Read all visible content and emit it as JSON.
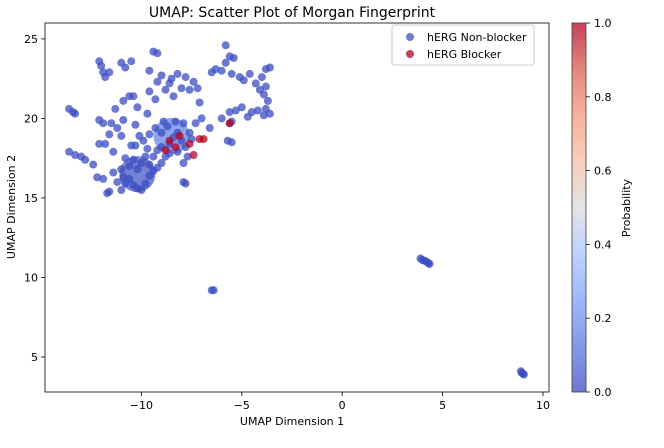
{
  "chart_data": {
    "type": "scatter",
    "title": "UMAP: Scatter Plot of Morgan Fingerprint",
    "xlabel": "UMAP Dimension 1",
    "ylabel": "UMAP Dimension 2",
    "xlim": [
      -14.8,
      10.3
    ],
    "ylim": [
      2.8,
      26.0
    ],
    "xticks": [
      -10,
      -5,
      0,
      5,
      10
    ],
    "xtick_labels": [
      "−10",
      "−5",
      "0",
      "5",
      "10"
    ],
    "yticks": [
      5,
      10,
      15,
      20,
      25
    ],
    "ytick_labels": [
      "5",
      "10",
      "15",
      "20",
      "25"
    ],
    "grid": false,
    "legend_position": "top-right",
    "colorbar": {
      "label": "Probability",
      "range": [
        0.0,
        1.0
      ],
      "ticks": [
        "0.0",
        "0.2",
        "0.4",
        "0.6",
        "0.8",
        "1.0"
      ],
      "colormap": "coolwarm"
    },
    "series": [
      {
        "name": "hERG Non-blocker",
        "color": "#3b4cc0",
        "points": [
          [
            -13.6,
            20.6
          ],
          [
            -13.4,
            20.4
          ],
          [
            -13.3,
            20.3
          ],
          [
            -12.1,
            23.6
          ],
          [
            -12.0,
            23.3
          ],
          [
            -11.9,
            22.9
          ],
          [
            -11.8,
            22.6
          ],
          [
            -11.6,
            22.9
          ],
          [
            -11.0,
            23.5
          ],
          [
            -10.8,
            23.2
          ],
          [
            -10.5,
            23.6
          ],
          [
            -11.3,
            20.6
          ],
          [
            -10.9,
            21.1
          ],
          [
            -10.6,
            21.4
          ],
          [
            -10.4,
            21.4
          ],
          [
            -11.5,
            19.7
          ],
          [
            -11.2,
            19.4
          ],
          [
            -10.9,
            19.9
          ],
          [
            -11.0,
            18.9
          ],
          [
            -11.4,
            17.9
          ],
          [
            -11.8,
            18.4
          ],
          [
            -12.1,
            18.4
          ],
          [
            -12.1,
            19.9
          ],
          [
            -11.9,
            19.7
          ],
          [
            -11.6,
            19.0
          ],
          [
            -10.5,
            18.3
          ],
          [
            -10.1,
            18.9
          ],
          [
            -10.3,
            19.6
          ],
          [
            -10.2,
            20.7
          ],
          [
            -9.7,
            20.3
          ],
          [
            -9.3,
            21.2
          ],
          [
            -9.6,
            21.7
          ],
          [
            -9.2,
            22.3
          ],
          [
            -9.0,
            22.7
          ],
          [
            -9.6,
            23.0
          ],
          [
            -9.4,
            24.2
          ],
          [
            -9.2,
            24.1
          ],
          [
            -8.8,
            21.8
          ],
          [
            -8.6,
            22.2
          ],
          [
            -8.4,
            21.4
          ],
          [
            -8.0,
            21.9
          ],
          [
            -7.6,
            21.8
          ],
          [
            -7.4,
            22.3
          ],
          [
            -7.2,
            21.9
          ],
          [
            -7.8,
            22.6
          ],
          [
            -8.2,
            22.8
          ],
          [
            -8.5,
            22.5
          ],
          [
            -7.1,
            21.0
          ],
          [
            -7.0,
            20.0
          ],
          [
            -7.3,
            19.7
          ],
          [
            -6.6,
            19.4
          ],
          [
            -6.0,
            20.0
          ],
          [
            -5.6,
            20.4
          ],
          [
            -5.5,
            19.8
          ],
          [
            -5.6,
            19.7
          ],
          [
            -5.7,
            18.6
          ],
          [
            -5.5,
            18.5
          ],
          [
            -6.5,
            22.9
          ],
          [
            -6.3,
            23.1
          ],
          [
            -6.0,
            23.0
          ],
          [
            -5.8,
            23.5
          ],
          [
            -5.6,
            23.9
          ],
          [
            -5.4,
            23.8
          ],
          [
            -5.8,
            24.6
          ],
          [
            -5.5,
            22.8
          ],
          [
            -5.1,
            22.6
          ],
          [
            -4.9,
            22.4
          ],
          [
            -4.6,
            22.8
          ],
          [
            -4.3,
            22.2
          ],
          [
            -4.0,
            22.6
          ],
          [
            -3.8,
            23.1
          ],
          [
            -3.6,
            23.2
          ],
          [
            -3.8,
            22.0
          ],
          [
            -4.1,
            21.8
          ],
          [
            -3.9,
            21.5
          ],
          [
            -3.7,
            21.1
          ],
          [
            -3.8,
            20.6
          ],
          [
            -3.6,
            20.3
          ],
          [
            -3.9,
            20.2
          ],
          [
            -4.2,
            20.5
          ],
          [
            -4.5,
            20.4
          ],
          [
            -5.3,
            20.5
          ],
          [
            -5.0,
            20.7
          ],
          [
            -4.7,
            20.1
          ],
          [
            -13.6,
            17.9
          ],
          [
            -13.3,
            17.7
          ],
          [
            -13.0,
            17.6
          ],
          [
            -12.8,
            17.4
          ],
          [
            -12.4,
            17.1
          ],
          [
            -12.2,
            16.3
          ],
          [
            -11.9,
            16.2
          ],
          [
            -11.6,
            15.4
          ],
          [
            -11.7,
            15.3
          ],
          [
            -11.4,
            16.6
          ],
          [
            -11.2,
            16.0
          ],
          [
            -11.0,
            15.5
          ],
          [
            -10.8,
            15.9
          ],
          [
            -10.6,
            16.2
          ],
          [
            -10.4,
            15.8
          ],
          [
            -10.2,
            15.6
          ],
          [
            -10.0,
            15.5
          ],
          [
            -9.8,
            15.9
          ],
          [
            -9.6,
            16.4
          ],
          [
            -9.4,
            16.7
          ],
          [
            -9.2,
            16.9
          ],
          [
            -9.0,
            17.2
          ],
          [
            -8.8,
            17.6
          ],
          [
            -10.6,
            17.0
          ],
          [
            -10.4,
            17.4
          ],
          [
            -10.2,
            16.8
          ],
          [
            -10.0,
            17.2
          ],
          [
            -9.8,
            17.6
          ],
          [
            -9.6,
            17.1
          ],
          [
            -9.4,
            17.6
          ],
          [
            -9.2,
            18.0
          ],
          [
            -10.8,
            17.5
          ],
          [
            -11.0,
            16.8
          ],
          [
            -10.9,
            16.3
          ],
          [
            -7.9,
            16.0
          ],
          [
            -7.8,
            15.9
          ],
          [
            -8.6,
            18.4
          ],
          [
            -8.4,
            18.8
          ],
          [
            -8.2,
            19.1
          ],
          [
            -8.0,
            18.6
          ],
          [
            -7.8,
            18.2
          ],
          [
            -8.2,
            17.9
          ],
          [
            -8.6,
            17.8
          ],
          [
            -9.0,
            18.2
          ],
          [
            -9.0,
            19.1
          ],
          [
            -8.7,
            19.5
          ],
          [
            -8.3,
            19.8
          ],
          [
            -7.9,
            19.7
          ],
          [
            -7.6,
            19.1
          ],
          [
            -7.5,
            18.7
          ],
          [
            -7.7,
            17.6
          ],
          [
            -7.9,
            17.2
          ],
          [
            -8.9,
            19.8
          ],
          [
            -9.3,
            19.4
          ],
          [
            -9.6,
            19.0
          ],
          [
            -9.9,
            18.6
          ],
          [
            -10.3,
            18.3
          ],
          [
            -9.7,
            18.1
          ],
          [
            -6.4,
            9.2
          ],
          [
            -6.5,
            9.2
          ],
          [
            3.9,
            11.2
          ],
          [
            4.0,
            11.1
          ],
          [
            4.1,
            11.05
          ],
          [
            4.2,
            11.0
          ],
          [
            4.3,
            10.9
          ],
          [
            4.35,
            10.85
          ],
          [
            8.9,
            4.1
          ],
          [
            8.95,
            4.0
          ],
          [
            9.0,
            3.95
          ],
          [
            9.05,
            3.9
          ]
        ]
      },
      {
        "name": "hERG Blocker",
        "color": "#b40426",
        "points": [
          [
            -8.6,
            18.6
          ],
          [
            -8.3,
            18.2
          ],
          [
            -8.1,
            18.9
          ],
          [
            -7.6,
            18.4
          ],
          [
            -7.4,
            17.7
          ],
          [
            -7.1,
            18.7
          ],
          [
            -6.9,
            18.7
          ],
          [
            -8.8,
            18.0
          ],
          [
            -5.6,
            19.7
          ]
        ]
      }
    ],
    "big_markers": [
      {
        "x": -10.2,
        "y": 16.5,
        "color": "#3b4cc0"
      },
      {
        "x": -8.5,
        "y": 18.9,
        "color": "#5e7ce0"
      }
    ]
  }
}
